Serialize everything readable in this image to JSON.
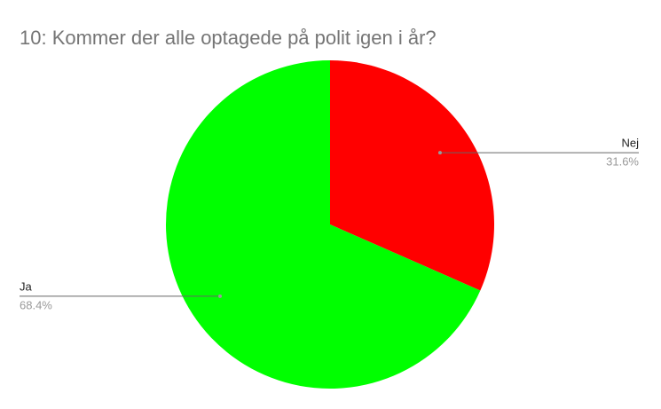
{
  "chart_data": {
    "type": "pie",
    "title": "10: Kommer der alle optagede på polit igen i år?",
    "categories": [
      "Nej",
      "Ja"
    ],
    "values": [
      31.6,
      68.4
    ],
    "value_labels": [
      "31.6%",
      "68.4%"
    ],
    "colors": [
      "#ff0000",
      "#00ff00"
    ]
  }
}
